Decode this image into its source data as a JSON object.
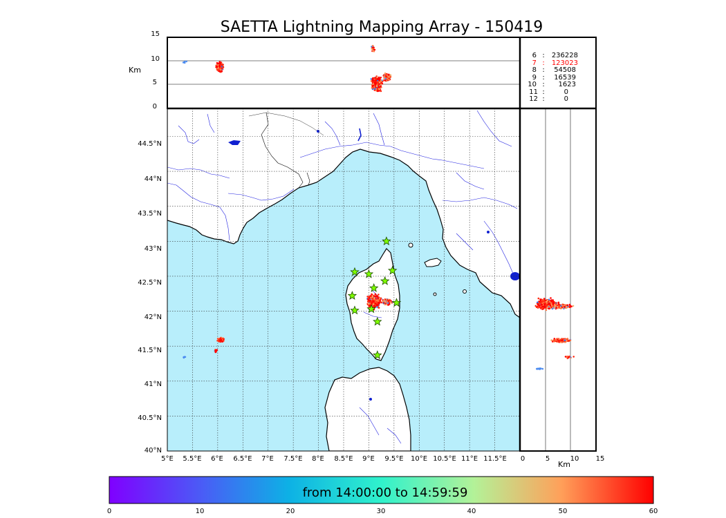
{
  "title": "SAETTA Lightning Mapping Array - 150419",
  "top_panel": {
    "ylabel": "Km",
    "yticks": [
      "15",
      "10",
      "5",
      "0"
    ],
    "station_counts": [
      {
        "stations": "6",
        "sep": ":",
        "count": "236228",
        "color": "#000000"
      },
      {
        "stations": "7",
        "sep": ":",
        "count": "123023",
        "color": "#ff0000"
      },
      {
        "stations": "8",
        "sep": ":",
        "count": "54508",
        "color": "#000000"
      },
      {
        "stations": "9",
        "sep": ":",
        "count": "16539",
        "color": "#000000"
      },
      {
        "stations": "10",
        "sep": ":",
        "count": "1623",
        "color": "#000000"
      },
      {
        "stations": "11",
        "sep": ":",
        "count": "0",
        "color": "#000000"
      },
      {
        "stations": "12",
        "sep": ":",
        "count": "0",
        "color": "#000000"
      }
    ]
  },
  "map": {
    "lat_ticks": [
      "44.5°N",
      "44°N",
      "43.5°N",
      "43°N",
      "42.5°N",
      "42°N",
      "41.5°N",
      "41°N",
      "40.5°N",
      "40°N"
    ],
    "lon_ticks": [
      "5°E",
      "5.5°E",
      "6°E",
      "6.5°E",
      "7°E",
      "7.5°E",
      "8°E",
      "8.5°E",
      "9°E",
      "9.5°E",
      "10°E",
      "10.5°E",
      "11°E",
      "11.5°E"
    ],
    "sea_color": "#b8eefb",
    "land_color": "#ffffff",
    "river_color": "#2020e0",
    "station_marker": "star",
    "station_color": "#80ff00",
    "stations": [
      {
        "lon": 9.35,
        "lat": 43.0
      },
      {
        "lon": 8.72,
        "lat": 42.56
      },
      {
        "lon": 9.0,
        "lat": 42.53
      },
      {
        "lon": 9.47,
        "lat": 42.58
      },
      {
        "lon": 9.32,
        "lat": 42.43
      },
      {
        "lon": 9.1,
        "lat": 42.33
      },
      {
        "lon": 8.67,
        "lat": 42.22
      },
      {
        "lon": 9.55,
        "lat": 42.12
      },
      {
        "lon": 8.72,
        "lat": 42.01
      },
      {
        "lon": 9.05,
        "lat": 42.03
      },
      {
        "lon": 9.17,
        "lat": 41.85
      },
      {
        "lon": 9.17,
        "lat": 41.37
      }
    ]
  },
  "side_panel": {
    "xlabel": "Km",
    "xticks": [
      "0",
      "5",
      "10",
      "15"
    ]
  },
  "colorbar": {
    "label": "from 14:00:00 to 14:59:59",
    "ticks": [
      "0",
      "10",
      "20",
      "30",
      "40",
      "50",
      "60"
    ],
    "range": [
      0,
      60
    ],
    "colormap": "rainbow"
  }
}
